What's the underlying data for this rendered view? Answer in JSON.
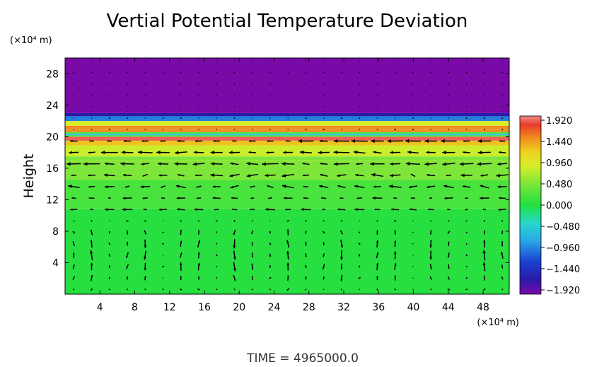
{
  "chart_data": {
    "type": "heatmap",
    "title": "Vertial Potential Temperature Deviation",
    "xlabel": "",
    "ylabel": "Height",
    "x_unit": "(×10⁴ m)",
    "y_unit": "(×10⁴ m)",
    "xlim": [
      0,
      51
    ],
    "ylim": [
      0,
      30
    ],
    "x_ticks": [
      "4",
      "8",
      "12",
      "16",
      "20",
      "24",
      "28",
      "32",
      "36",
      "40",
      "44",
      "48"
    ],
    "y_ticks": [
      "4",
      "8",
      "12",
      "16",
      "20",
      "24",
      "28"
    ],
    "colorbar": {
      "ticks": [
        "1.920",
        "1.440",
        "0.960",
        "0.480",
        "0.000",
        "−0.480",
        "−0.960",
        "−1.440",
        "−1.920"
      ],
      "range": [
        -1.92,
        1.92
      ]
    },
    "field_bands": [
      {
        "y0": 0,
        "y1": 10.8,
        "value": 0.02
      },
      {
        "y0": 10.8,
        "y1": 14.5,
        "value": 0.15
      },
      {
        "y0": 14.5,
        "y1": 17.5,
        "value": 0.35
      },
      {
        "y0": 17.5,
        "y1": 18.9,
        "value": 0.65
      },
      {
        "y0": 18.9,
        "y1": 19.5,
        "value": 1.05
      },
      {
        "y0": 19.5,
        "y1": 20.0,
        "value": 1.75
      },
      {
        "y0": 20.0,
        "y1": 20.6,
        "value": 0.2
      },
      {
        "y0": 20.6,
        "y1": 21.4,
        "value": 1.3
      },
      {
        "y0": 21.4,
        "y1": 22.0,
        "value": 0.7
      },
      {
        "y0": 22.0,
        "y1": 22.6,
        "value": -0.9
      },
      {
        "y0": 22.6,
        "y1": 23.0,
        "value": -1.6
      },
      {
        "y0": 23.0,
        "y1": 30,
        "value": -1.92
      }
    ],
    "vector_field": {
      "x_spacing": 2.05,
      "y_spacing": 1.45,
      "description": "wind vectors; strong leftward jets near heights 13, 16.5, 19 and 11; convective cells below 10"
    }
  },
  "footer": "TIME  =  4965000.0",
  "colors": {
    "background": "#ffffff",
    "axis": "#000000",
    "arrow": "#000000"
  }
}
